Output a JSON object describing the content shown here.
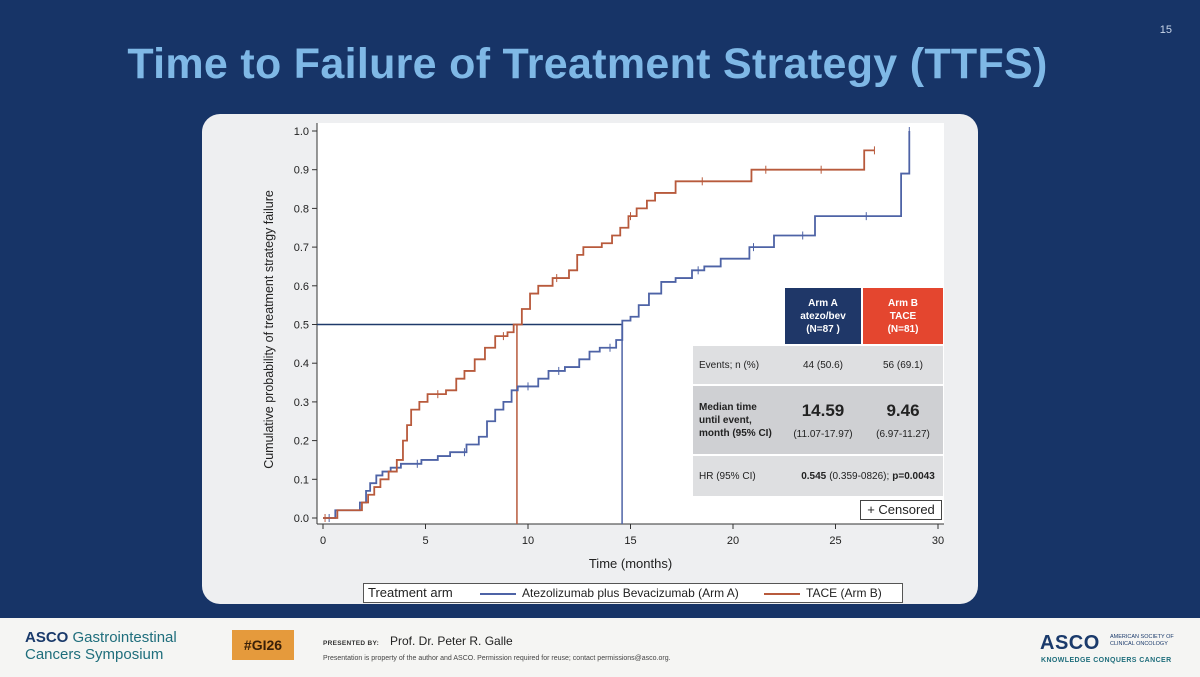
{
  "slide": {
    "page_number": "15",
    "title": "Time to Failure of Treatment Strategy (TTFS)"
  },
  "colors": {
    "arm_a": "#4e63a6",
    "arm_b": "#b85a3c",
    "ref_line": "#1f3a6a"
  },
  "chart_data": {
    "type": "line",
    "subtype": "kaplan-meier-step",
    "xlabel": "Time (months)",
    "ylabel": "Cumulative probability of treatment strategy failure",
    "xlim": [
      0,
      30
    ],
    "ylim": [
      0.0,
      1.0
    ],
    "xticks": [
      "0",
      "5",
      "10",
      "15",
      "20",
      "25",
      "30"
    ],
    "yticks": [
      "0.0",
      "0.1",
      "0.2",
      "0.3",
      "0.4",
      "0.5",
      "0.6",
      "0.7",
      "0.8",
      "0.9",
      "1.0"
    ],
    "reference": {
      "y": 0.5,
      "median_arm_a": 14.59,
      "median_arm_b": 9.46
    },
    "series": [
      {
        "name": "Atezolizumab plus Bevacizumab (Arm A)",
        "color": "#4e63a6",
        "x": [
          0,
          0.6,
          1.8,
          2.1,
          2.3,
          2.6,
          2.9,
          3.3,
          3.8,
          4.1,
          4.8,
          5.6,
          6.2,
          7.0,
          7.6,
          8.0,
          8.4,
          8.8,
          9.2,
          9.5,
          10.5,
          11.0,
          11.8,
          12.5,
          13.0,
          13.5,
          14.3,
          14.6,
          15.0,
          15.4,
          15.9,
          16.5,
          17.2,
          18.0,
          18.6,
          19.4,
          20.0,
          20.8,
          22.0,
          23.2,
          24.0,
          26.0,
          26.9,
          28.2,
          28.6
        ],
        "y": [
          0.0,
          0.02,
          0.04,
          0.07,
          0.09,
          0.11,
          0.12,
          0.13,
          0.14,
          0.14,
          0.15,
          0.16,
          0.17,
          0.19,
          0.21,
          0.25,
          0.28,
          0.3,
          0.33,
          0.34,
          0.36,
          0.38,
          0.39,
          0.41,
          0.43,
          0.44,
          0.46,
          0.51,
          0.52,
          0.55,
          0.58,
          0.61,
          0.62,
          0.64,
          0.65,
          0.67,
          0.67,
          0.7,
          0.73,
          0.73,
          0.78,
          0.78,
          0.78,
          0.89,
          1.0
        ],
        "censor_x": [
          0.3,
          3.6,
          4.6,
          6.9,
          10.0,
          11.5,
          14.0,
          18.3,
          21.0,
          23.4,
          26.5,
          28.6
        ]
      },
      {
        "name": "TACE (Arm B)",
        "color": "#b85a3c",
        "x": [
          0,
          0.7,
          1.9,
          2.2,
          2.5,
          2.8,
          3.2,
          3.6,
          3.9,
          4.1,
          4.3,
          4.7,
          5.1,
          6.0,
          6.5,
          6.9,
          7.4,
          7.9,
          8.4,
          9.0,
          9.3,
          9.7,
          10.1,
          10.5,
          11.2,
          12.0,
          12.4,
          12.7,
          13.6,
          14.1,
          14.5,
          14.9,
          15.3,
          15.8,
          16.2,
          17.2,
          18.4,
          19.5,
          20.9,
          22.5,
          26.4,
          26.9
        ],
        "y": [
          0.0,
          0.02,
          0.04,
          0.06,
          0.08,
          0.1,
          0.12,
          0.15,
          0.2,
          0.24,
          0.28,
          0.3,
          0.32,
          0.33,
          0.36,
          0.38,
          0.41,
          0.44,
          0.47,
          0.48,
          0.5,
          0.54,
          0.58,
          0.6,
          0.62,
          0.64,
          0.68,
          0.7,
          0.71,
          0.73,
          0.75,
          0.78,
          0.8,
          0.82,
          0.84,
          0.87,
          0.87,
          0.87,
          0.9,
          0.9,
          0.95,
          0.95
        ],
        "censor_x": [
          0.1,
          5.6,
          8.8,
          11.4,
          15.0,
          18.5,
          21.6,
          24.3,
          26.9
        ]
      }
    ]
  },
  "stats_table": {
    "arm_a_header": [
      "Arm A",
      "atezo/bev",
      "(N=87 )"
    ],
    "arm_b_header": [
      "Arm B",
      "TACE",
      "(N=81)"
    ],
    "events_label": "Events; n (%)",
    "events_a": "44 (50.6)",
    "events_b": "56 (69.1)",
    "median_label": [
      "Median time",
      "until event,",
      "month (95% CI)"
    ],
    "median_a": "14.59",
    "median_a_ci": "(11.07-17.97)",
    "median_b": "9.46",
    "median_b_ci": "(6.97-11.27)",
    "hr_label": "HR (95% CI)",
    "hr_value": "0.545",
    "hr_ci": "(0.359-0826);",
    "hr_p": "p=0.0043"
  },
  "censored_box": "+ Censored",
  "legend": {
    "title": "Treatment arm",
    "arm_a": "Atezolizumab plus Bevacizumab (Arm A)",
    "arm_b": "TACE (Arm B)"
  },
  "footer": {
    "asco_prefix": "ASCO",
    "symposium_line1": "Gastrointestinal",
    "symposium_line2": "Cancers Symposium",
    "hashtag": "#GI26",
    "presented_by": "PRESENTED BY:",
    "presenter": "Prof. Dr. Peter R. Galle",
    "disclaimer": "Presentation is property of the author and ASCO. Permission required for reuse; contact permissions@asco.org.",
    "asco_logo": "ASCO",
    "society_line1": "AMERICAN SOCIETY OF",
    "society_line2": "CLINICAL ONCOLOGY",
    "tagline": "KNOWLEDGE CONQUERS CANCER"
  }
}
